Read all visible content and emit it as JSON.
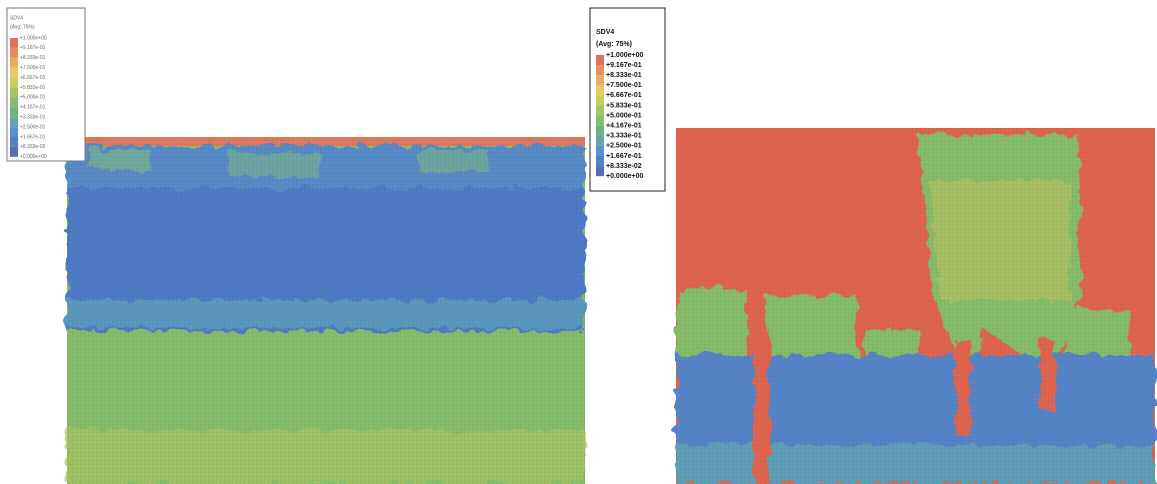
{
  "legends": [
    {
      "title": "SDV4",
      "subtitle": "(Avg: 75%)",
      "labels": [
        "+1.000e+00",
        "+9.167e-01",
        "+8.333e-01",
        "+7.500e-01",
        "+6.667e-01",
        "+5.833e-01",
        "+5.000e-01",
        "+4.167e-01",
        "+3.333e-01",
        "+2.500e-01",
        "+1.667e-01",
        "+8.333e-02",
        "+0.000e+00"
      ]
    },
    {
      "title": "SDV4",
      "subtitle": "(Avg: 75%)",
      "labels": [
        "+1.000e+00",
        "+9.167e-01",
        "+8.333e-01",
        "+7.500e-01",
        "+6.667e-01",
        "+5.833e-01",
        "+5.000e-01",
        "+4.167e-01",
        "+3.333e-01",
        "+2.500e-01",
        "+1.667e-01",
        "+8.333e-02",
        "+0.000e+00"
      ]
    }
  ]
}
